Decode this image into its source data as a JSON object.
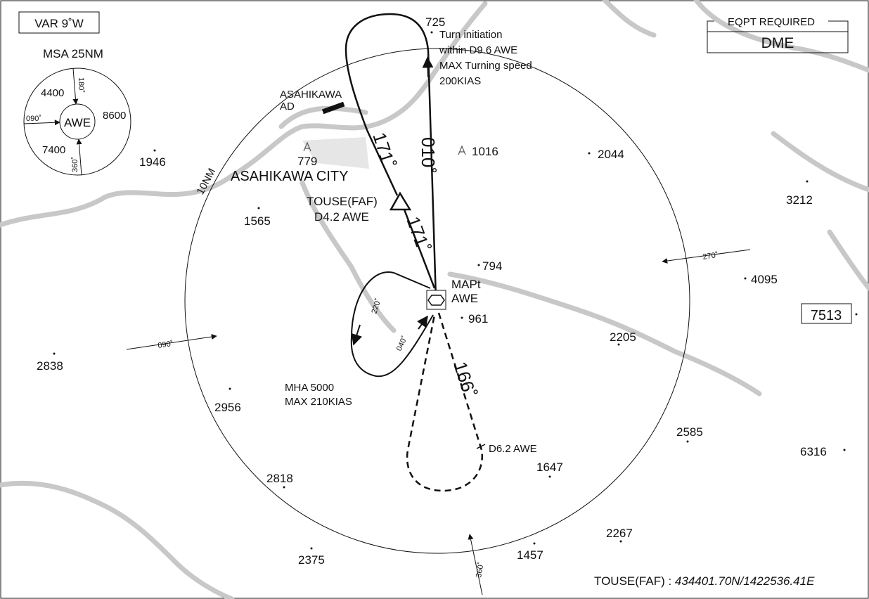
{
  "header": {
    "variation": "VAR 9˚W",
    "msa_title": "MSA 25NM",
    "eqpt_label": "EQPT REQUIRED",
    "eqpt_value": "DME"
  },
  "msa": {
    "center": "AWE",
    "sectors": [
      "4400",
      "8600",
      "7400"
    ],
    "bearings": [
      "180˚",
      "090˚",
      "360˚"
    ]
  },
  "elevations": [
    725,
    1946,
    1016,
    2044,
    3212,
    779,
    1565,
    794,
    4095,
    7513,
    961,
    2205,
    2838,
    2956,
    2585,
    6316,
    1647,
    2818,
    2267,
    1457,
    2375
  ],
  "labels": {
    "aerodrome": [
      "ASAHIKAWA",
      "AD"
    ],
    "city": "ASAHIKAWA CITY",
    "range_ring": "10NM",
    "faf": [
      "TOUSE(FAF)",
      "D4.2 AWE"
    ],
    "mapt": [
      "MAPt",
      "AWE"
    ],
    "holding": [
      "MHA 5000",
      "MAX 210KIAS"
    ],
    "missed_fix": "D6.2 AWE",
    "turn_note": [
      "Turn initiation",
      "within D9.6 AWE",
      "MAX Turning speed",
      "200KIAS"
    ]
  },
  "tracks": {
    "inbound_upper": "171˚",
    "inbound_lower": "171˚",
    "outbound": "010˚",
    "missed": "166˚",
    "hold_outbound": "220˚",
    "hold_inbound": "040˚",
    "arrow_west": "090˚",
    "arrow_east": "270˚",
    "arrow_south": "360˚"
  },
  "footer": {
    "fix": "TOUSE(FAF) : ",
    "coordinates": "434401.70N/1422536.41E"
  }
}
